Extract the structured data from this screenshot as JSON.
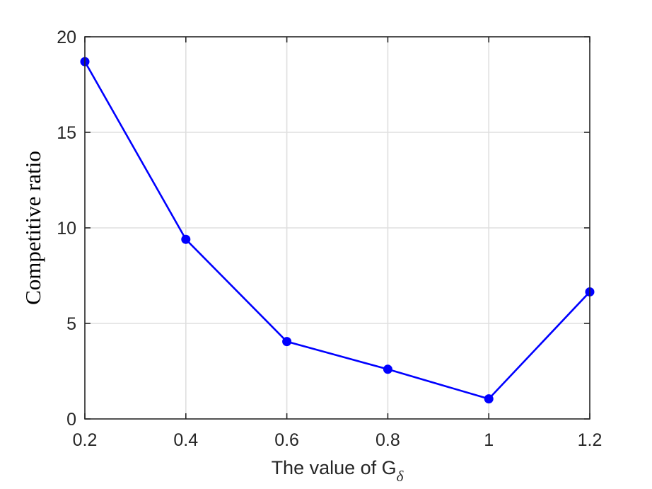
{
  "chart_data": {
    "type": "line",
    "xlabel_main": "The value of G",
    "xlabel_sub": "δ",
    "ylabel": "Competitive ratio",
    "xlim": [
      0.2,
      1.2
    ],
    "ylim": [
      0,
      20
    ],
    "grid": true,
    "x_ticks": [
      0.2,
      0.4,
      0.6,
      0.8,
      1,
      1.2
    ],
    "x_tick_labels": [
      "0.2",
      "0.4",
      "0.6",
      "0.8",
      "1",
      "1.2"
    ],
    "y_ticks": [
      0,
      5,
      10,
      15,
      20
    ],
    "y_tick_labels": [
      "0",
      "5",
      "10",
      "15",
      "20"
    ],
    "series": [
      {
        "color": "#0000ff",
        "marker": "circle",
        "x": [
          0.2,
          0.4,
          0.6,
          0.8,
          1.0,
          1.2
        ],
        "y": [
          18.7,
          9.4,
          4.05,
          2.6,
          1.05,
          6.65
        ]
      }
    ]
  }
}
